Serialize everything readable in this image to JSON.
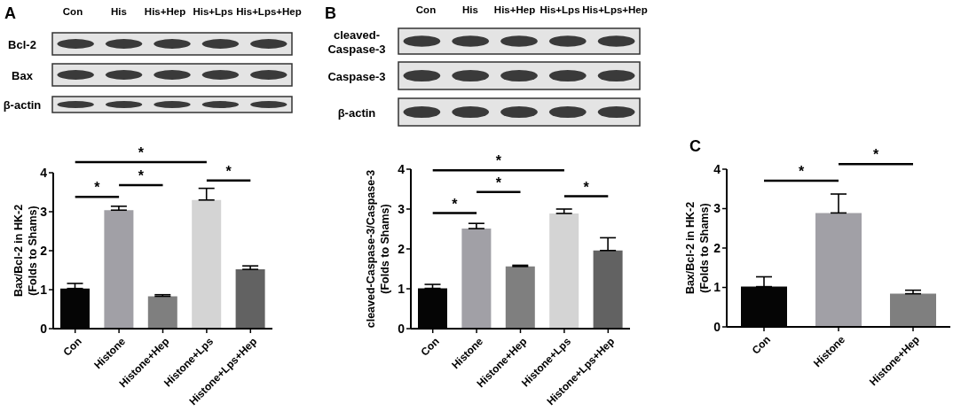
{
  "chart_data": [
    {
      "type": "other",
      "title": "A",
      "categories": [
        "Con",
        "His",
        "His+Hep",
        "His+Lps",
        "His+Lps+Hep"
      ],
      "y_categories": [
        "Bcl-2",
        "Bax",
        "β-actin"
      ]
    },
    {
      "type": "bar",
      "ylabel": "Bax/Bcl-2 in HK-2\n(Folds to Shams)",
      "categories": [
        "Con",
        "Histone",
        "Histone+Hep",
        "Histone+Lps",
        "Histone+Lps+Hep"
      ],
      "values": [
        1.03,
        3.04,
        0.83,
        3.3,
        1.52
      ],
      "colors": [
        "#050505",
        "#a1a0a6",
        "#7f7f7f",
        "#d4d4d4",
        "#626262"
      ],
      "errors": [
        [
          1.03,
          1.16
        ],
        [
          3.04,
          3.14
        ],
        [
          0.83,
          0.87
        ],
        [
          3.3,
          3.6
        ],
        [
          1.52,
          1.61
        ]
      ],
      "ylim": [
        0,
        4
      ],
      "yticks": [
        0,
        1,
        2,
        3,
        4
      ],
      "annotations": [
        "*",
        "*",
        "*",
        "*"
      ]
    },
    {
      "type": "other",
      "title": "B",
      "categories": [
        "Con",
        "His",
        "His+Hep",
        "His+Lps",
        "His+Lps+Hep"
      ],
      "y_categories": [
        "cleaved-Caspase-3",
        "Caspase-3",
        "β-actin"
      ]
    },
    {
      "type": "bar",
      "ylabel": "cleaved-Caspase-3/Caspase-3\n(Folds to Shams)",
      "categories": [
        "Con",
        "Histone",
        "Histone+Hep",
        "Histone+Lps",
        "Histone+Lps+Hep"
      ],
      "values": [
        1.01,
        2.51,
        1.56,
        2.89,
        1.96
      ],
      "colors": [
        "#050505",
        "#a1a0a6",
        "#7f7f7f",
        "#d4d4d4",
        "#626262"
      ],
      "errors": [
        [
          1.01,
          1.11
        ],
        [
          2.51,
          2.64
        ],
        [
          1.56,
          1.59
        ],
        [
          2.89,
          3.0
        ],
        [
          1.96,
          2.28
        ]
      ],
      "ylim": [
        0,
        4
      ],
      "yticks": [
        0,
        1,
        2,
        3,
        4
      ],
      "annotations": [
        "*",
        "*",
        "*",
        "*"
      ]
    },
    {
      "type": "bar",
      "title": "C",
      "ylabel": "Bax/Bcl-2 in HK-2\n(Folds to Shams)",
      "categories": [
        "Con",
        "Histone",
        "Histone+Hep"
      ],
      "values": [
        1.02,
        2.89,
        0.84
      ],
      "colors": [
        "#050505",
        "#a1a0a6",
        "#7f7f7f"
      ],
      "errors": [
        [
          1.02,
          1.27
        ],
        [
          2.89,
          3.37
        ],
        [
          0.84,
          0.93
        ]
      ],
      "ylim": [
        0,
        4
      ],
      "yticks": [
        0,
        1,
        2,
        3,
        4
      ],
      "annotations": [
        "*",
        "*"
      ]
    }
  ]
}
